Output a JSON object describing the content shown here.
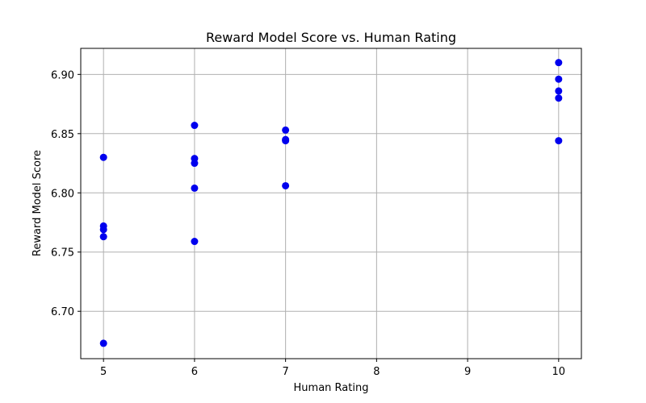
{
  "chart_data": {
    "type": "scatter",
    "title": "Reward Model Score vs. Human Rating",
    "xlabel": "Human Rating",
    "ylabel": "Reward Model Score",
    "xlim": [
      4.75,
      10.25
    ],
    "ylim": [
      6.66,
      6.922
    ],
    "xticks": [
      5,
      6,
      7,
      8,
      9,
      10
    ],
    "xtick_labels": [
      "5",
      "6",
      "7",
      "8",
      "9",
      "10"
    ],
    "yticks": [
      6.7,
      6.75,
      6.8,
      6.85,
      6.9
    ],
    "ytick_labels": [
      "6.70",
      "6.75",
      "6.80",
      "6.85",
      "6.90"
    ],
    "grid": true,
    "marker_color": "#0000ee",
    "points": [
      {
        "x": 5,
        "y": 6.83
      },
      {
        "x": 5,
        "y": 6.772
      },
      {
        "x": 5,
        "y": 6.769
      },
      {
        "x": 5,
        "y": 6.763
      },
      {
        "x": 5,
        "y": 6.673
      },
      {
        "x": 6,
        "y": 6.857
      },
      {
        "x": 6,
        "y": 6.829
      },
      {
        "x": 6,
        "y": 6.825
      },
      {
        "x": 6,
        "y": 6.804
      },
      {
        "x": 6,
        "y": 6.759
      },
      {
        "x": 7,
        "y": 6.853
      },
      {
        "x": 7,
        "y": 6.845
      },
      {
        "x": 7,
        "y": 6.844
      },
      {
        "x": 7,
        "y": 6.806
      },
      {
        "x": 10,
        "y": 6.91
      },
      {
        "x": 10,
        "y": 6.896
      },
      {
        "x": 10,
        "y": 6.886
      },
      {
        "x": 10,
        "y": 6.88
      },
      {
        "x": 10,
        "y": 6.844
      }
    ]
  }
}
